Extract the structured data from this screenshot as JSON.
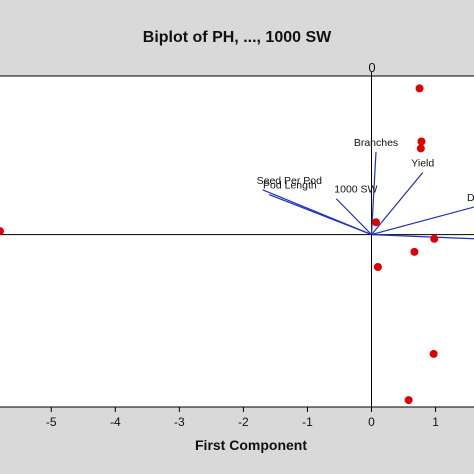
{
  "chart_data": {
    "type": "scatter",
    "title": "Biplot of PH, ..., 1000 SW",
    "xlabel": "First Component",
    "ylabel": "",
    "xlim": [
      -5.8,
      1.6
    ],
    "ylim": [
      -2.5,
      2.3
    ],
    "x_ticks": [
      -5,
      -4,
      -3,
      -2,
      -1,
      0,
      1
    ],
    "x_tick_labels": [
      "-5",
      "-4",
      "-3",
      "-2",
      "-1",
      "0",
      "1"
    ],
    "top_tick_label": "0",
    "grid": false,
    "legend": "none",
    "series": [
      {
        "points": [
          {
            "x": -5.8,
            "y": 0.05
          },
          {
            "x": 0.75,
            "y": 2.12
          },
          {
            "x": 0.78,
            "y": 1.35
          },
          {
            "x": 0.77,
            "y": 1.25
          },
          {
            "x": 0.07,
            "y": 0.18
          },
          {
            "x": 0.98,
            "y": -0.06
          },
          {
            "x": 0.67,
            "y": -0.25
          },
          {
            "x": 0.1,
            "y": -0.47
          },
          {
            "x": 0.97,
            "y": -1.73
          },
          {
            "x": 0.58,
            "y": -2.4
          }
        ]
      }
    ],
    "vectors": [
      {
        "label": "Branches",
        "x": 0.07,
        "y": 1.2
      },
      {
        "label": "Yield",
        "x": 0.8,
        "y": 0.9
      },
      {
        "label": "DF",
        "x": 1.6,
        "y": 0.4
      },
      {
        "label": "",
        "x": 1.6,
        "y": -0.06
      },
      {
        "label": "Seed Per Pod",
        "x": -1.7,
        "y": 0.65
      },
      {
        "label": "Pod Length",
        "x": -1.6,
        "y": 0.58
      },
      {
        "label": "1000 SW",
        "x": -0.55,
        "y": 0.52
      }
    ],
    "colors": {
      "points": "#e00000",
      "vectors": "#2030c0",
      "axes": "#000000",
      "plot_bg": "#ffffff",
      "frame_bg": "#d9d9d9"
    }
  }
}
